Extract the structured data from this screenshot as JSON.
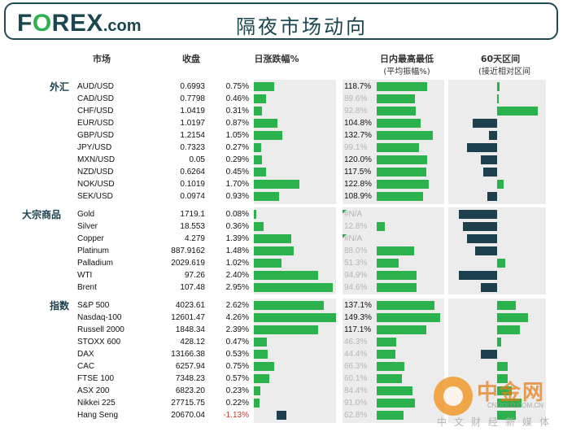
{
  "header": {
    "logo_prefix": "F",
    "logo_o": "O",
    "logo_rest": "REX",
    "logo_suffix": ".com",
    "title": "隔夜市场动向"
  },
  "columns": {
    "market": "市场",
    "close": "收盘",
    "change": "日涨跌幅%",
    "range": "日内最高最低",
    "range_sub": "(平均振幅%)",
    "sixty": "60天区间",
    "sixty_sub": "(接近相对区间"
  },
  "colors": {
    "positive": "#2bb24c",
    "negative": "#1e3f4d",
    "negative_text": "#c0392b",
    "panel": "#ececec",
    "brand": "#1a4650"
  },
  "chart_data": {
    "type": "table",
    "sections": [
      {
        "label": "外汇",
        "rows": [
          {
            "name": "AUD/USD",
            "close": "0.6993",
            "change": 0.75,
            "change_text": "0.75%",
            "range": 118.7,
            "range_text": "118.7%",
            "range_muted": false,
            "sixty": 0.05
          },
          {
            "name": "CAD/USD",
            "close": "0.7798",
            "change": 0.46,
            "change_text": "0.46%",
            "range": 89.6,
            "range_text": "89.6%",
            "range_muted": true,
            "sixty": 0.02
          },
          {
            "name": "CHF/USD",
            "close": "1.0419",
            "change": 0.31,
            "change_text": "0.31%",
            "range": 92.8,
            "range_text": "92.8%",
            "range_muted": true,
            "sixty": 1.0
          },
          {
            "name": "EUR/USD",
            "close": "1.0197",
            "change": 0.87,
            "change_text": "0.87%",
            "range": 104.8,
            "range_text": "104.8%",
            "range_muted": false,
            "sixty": -0.6
          },
          {
            "name": "GBP/USD",
            "close": "1.2154",
            "change": 1.05,
            "change_text": "1.05%",
            "range": 132.7,
            "range_text": "132.7%",
            "range_muted": false,
            "sixty": -0.2
          },
          {
            "name": "JPY/USD",
            "close": "0.7323",
            "change": 0.27,
            "change_text": "0.27%",
            "range": 99.1,
            "range_text": "99.1%",
            "range_muted": true,
            "sixty": -0.75
          },
          {
            "name": "MXN/USD",
            "close": "0.05",
            "change": 0.29,
            "change_text": "0.29%",
            "range": 120.0,
            "range_text": "120.0%",
            "range_muted": false,
            "sixty": -0.4
          },
          {
            "name": "NZD/USD",
            "close": "0.6264",
            "change": 0.45,
            "change_text": "0.45%",
            "range": 117.5,
            "range_text": "117.5%",
            "range_muted": false,
            "sixty": -0.35
          },
          {
            "name": "NOK/USD",
            "close": "0.1019",
            "change": 1.7,
            "change_text": "1.70%",
            "range": 122.8,
            "range_text": "122.8%",
            "range_muted": false,
            "sixty": 0.15
          },
          {
            "name": "SEK/USD",
            "close": "0.0974",
            "change": 0.93,
            "change_text": "0.93%",
            "range": 108.9,
            "range_text": "108.9%",
            "range_muted": false,
            "sixty": -0.25
          }
        ]
      },
      {
        "label": "大宗商品",
        "rows": [
          {
            "name": "Gold",
            "close": "1719.1",
            "change": 0.08,
            "change_text": "0.08%",
            "range": null,
            "range_text": "#N/A",
            "range_muted": true,
            "na": true,
            "sixty": -0.95
          },
          {
            "name": "Silver",
            "close": "18.553",
            "change": 0.36,
            "change_text": "0.36%",
            "range": 12.8,
            "range_text": "12.8%",
            "range_muted": true,
            "sixty": -0.85
          },
          {
            "name": "Copper",
            "close": "4.279",
            "change": 1.39,
            "change_text": "1.39%",
            "range": null,
            "range_text": "#N/A",
            "range_muted": true,
            "na": true,
            "sixty": -0.75
          },
          {
            "name": "Platinum",
            "close": "887.9162",
            "change": 1.48,
            "change_text": "1.48%",
            "range": 88.0,
            "range_text": "88.0%",
            "range_muted": true,
            "sixty": -0.55
          },
          {
            "name": "Palladium",
            "close": "2029.619",
            "change": 1.02,
            "change_text": "1.02%",
            "range": 51.3,
            "range_text": "51.3%",
            "range_muted": true,
            "sixty": 0.2
          },
          {
            "name": "WTI",
            "close": "97.26",
            "change": 2.4,
            "change_text": "2.40%",
            "range": 94.9,
            "range_text": "94.9%",
            "range_muted": true,
            "sixty": -0.95
          },
          {
            "name": "Brent",
            "close": "107.48",
            "change": 2.95,
            "change_text": "2.95%",
            "range": 94.6,
            "range_text": "94.6%",
            "range_muted": true,
            "sixty": -0.4
          }
        ]
      },
      {
        "label": "指数",
        "rows": [
          {
            "name": "S&P 500",
            "close": "4023.61",
            "change": 2.62,
            "change_text": "2.62%",
            "range": 137.1,
            "range_text": "137.1%",
            "range_muted": false,
            "sixty": 0.45
          },
          {
            "name": "Nasdaq-100",
            "close": "12601.47",
            "change": 4.26,
            "change_text": "4.26%",
            "range": 149.3,
            "range_text": "149.3%",
            "range_muted": false,
            "sixty": 0.75
          },
          {
            "name": "Russell 2000",
            "close": "1848.34",
            "change": 2.39,
            "change_text": "2.39%",
            "range": 117.1,
            "range_text": "117.1%",
            "range_muted": false,
            "sixty": 0.55
          },
          {
            "name": "STOXX 600",
            "close": "428.12",
            "change": 0.47,
            "change_text": "0.47%",
            "range": 46.3,
            "range_text": "46.3%",
            "range_muted": true,
            "sixty": 0.1
          },
          {
            "name": "DAX",
            "close": "13166.38",
            "change": 0.53,
            "change_text": "0.53%",
            "range": 44.4,
            "range_text": "44.4%",
            "range_muted": true,
            "sixty": -0.4
          },
          {
            "name": "CAC",
            "close": "6257.94",
            "change": 0.75,
            "change_text": "0.75%",
            "range": 66.3,
            "range_text": "66.3%",
            "range_muted": true,
            "sixty": 0.25
          },
          {
            "name": "FTSE 100",
            "close": "7348.23",
            "change": 0.57,
            "change_text": "0.57%",
            "range": 60.1,
            "range_text": "60.1%",
            "range_muted": true,
            "sixty": 0.25
          },
          {
            "name": "ASX 200",
            "close": "6823.20",
            "change": 0.23,
            "change_text": "0.23%",
            "range": 84.4,
            "range_text": "84.4%",
            "range_muted": true,
            "sixty": 0.35
          },
          {
            "name": "Nikkei 225",
            "close": "27715.75",
            "change": 0.22,
            "change_text": "0.22%",
            "range": 91.0,
            "range_text": "91.0%",
            "range_muted": true,
            "sixty": 0.6
          },
          {
            "name": "Hang Seng",
            "close": "20670.04",
            "change": -1.13,
            "change_text": "-1.13%",
            "range": 62.8,
            "range_text": "62.8%",
            "range_muted": true,
            "sixty": 0.45
          }
        ]
      }
    ]
  },
  "watermark": {
    "brand": "中金网",
    "url": "CNGOLD.COM.CN",
    "tagline": "中文财经新媒体"
  }
}
